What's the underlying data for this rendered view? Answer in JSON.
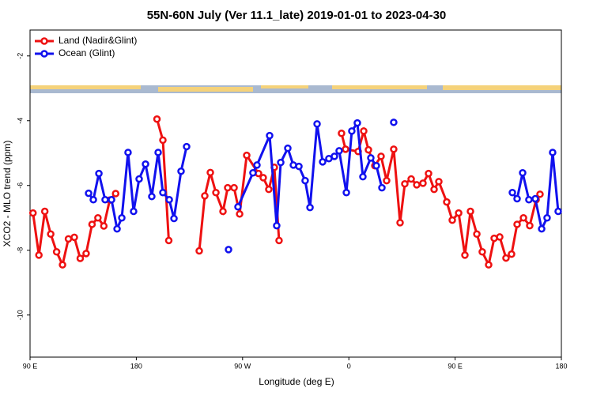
{
  "chart_data": {
    "type": "line",
    "title": "55N-60N July (Ver 11.1_late)   2019-01-01 to 2023-04-30",
    "xlabel": "Longitude (deg E)",
    "ylabel": "XCO2 - MLO trend (ppm)",
    "xlim": [
      90,
      540
    ],
    "xticks": [
      {
        "value": 90,
        "label": "90 E"
      },
      {
        "value": 180,
        "label": "180"
      },
      {
        "value": 270,
        "label": "90 W"
      },
      {
        "value": 360,
        "label": "0"
      },
      {
        "value": 450,
        "label": "90 E"
      },
      {
        "value": 540,
        "label": "180"
      }
    ],
    "ylim": [
      -11.3,
      -1.2
    ],
    "yticks": [
      -2,
      -4,
      -6,
      -8,
      -10
    ],
    "legend": "top-left",
    "series": [
      {
        "name": "Land (Nadir&Glint)",
        "color": "#ee1111",
        "x": [
          92.5,
          97.5,
          102.5,
          107.5,
          112.5,
          117.5,
          122.5,
          127.5,
          132.5,
          137.5,
          142.5,
          147.5,
          152.5,
          157.5,
          162.5,
          null,
          197.5,
          202.5,
          207.5,
          null,
          233.3,
          238,
          242.7,
          247.4,
          253.4,
          257.4,
          262.8,
          267.5,
          273.5,
          283.5,
          287.5,
          292.2,
          296.9,
          300.9,
          null,
          353.8,
          357.2,
          367.9,
          372.6,
          376.6,
          382,
          387.3,
          392,
          398,
          403.4,
          407.4,
          412.8,
          417.5,
          422.8,
          427.5,
          432.2,
          436.2,
          442.9,
          447.6,
          453,
          458.3,
          463,
          468.4,
          473,
          478.4,
          483.1,
          487.8,
          493.1,
          497.8,
          502.5,
          507.9,
          513.2,
          518.6,
          521.9
        ],
        "values": [
          -6.85,
          -8.15,
          -6.8,
          -7.5,
          -8.05,
          -8.45,
          -7.65,
          -7.6,
          -8.25,
          -8.1,
          -7.2,
          -7.0,
          -7.25,
          -6.45,
          -6.25,
          null,
          -3.95,
          -4.6,
          -7.7,
          null,
          -8.02,
          -6.32,
          -5.6,
          -6.22,
          -6.8,
          -6.07,
          -6.07,
          -6.88,
          -5.07,
          -5.63,
          -5.76,
          -6.12,
          -5.44,
          -7.7,
          null,
          -4.39,
          -4.88,
          -4.95,
          -4.32,
          -4.9,
          -5.39,
          -5.1,
          -5.85,
          -4.88,
          -7.15,
          -5.95,
          -5.8,
          -5.98,
          -5.93,
          -5.63,
          -6.12,
          -5.88,
          -6.51,
          -7.07,
          -6.85,
          -8.15,
          -6.8,
          -7.5,
          -8.05,
          -8.45,
          -7.63,
          -7.59,
          -8.24,
          -8.12,
          -7.2,
          -7.0,
          -7.24,
          -6.44,
          -6.27
        ]
      },
      {
        "name": "Ocean (Glint)",
        "color": "#1111ee",
        "x": [
          139.6,
          143.6,
          148.3,
          153.6,
          159,
          163.7,
          167.7,
          173,
          177.7,
          182.4,
          187.8,
          193.1,
          198.5,
          202.5,
          207.9,
          211.9,
          217.9,
          222.6,
          null,
          258.1,
          null,
          266.1,
          278.8,
          282.2,
          292.9,
          298.9,
          302.3,
          308.3,
          313,
          317.7,
          323,
          327.1,
          333.1,
          337.8,
          343.1,
          347.8,
          351.8,
          357.9,
          362.5,
          367.2,
          371.9,
          378.6,
          383.3,
          388,
          null,
          398,
          null,
          498.5,
          502.5,
          507.2,
          512.5,
          517.9,
          523.3,
          527.9,
          532.6,
          537.3
        ],
        "values": [
          -6.24,
          -6.44,
          -5.63,
          -6.44,
          -6.44,
          -7.34,
          -7.0,
          -4.98,
          -6.8,
          -5.8,
          -5.34,
          -6.34,
          -4.98,
          -6.22,
          -6.44,
          -7.02,
          -5.56,
          -4.8,
          null,
          -7.98,
          null,
          -6.66,
          -5.61,
          -5.37,
          -4.46,
          -7.24,
          -5.29,
          -4.85,
          -5.37,
          -5.41,
          -5.85,
          -6.68,
          -4.1,
          -5.27,
          -5.17,
          -5.1,
          -4.93,
          -6.22,
          -4.32,
          -4.07,
          -5.73,
          -5.15,
          -5.39,
          -6.07,
          null,
          -4.05,
          null,
          -6.22,
          -6.41,
          -5.61,
          -6.44,
          -6.41,
          -7.34,
          -7.0,
          -4.98,
          -6.8
        ]
      }
    ]
  }
}
